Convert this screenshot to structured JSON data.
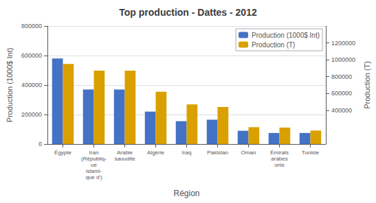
{
  "chart_data": {
    "type": "bar",
    "title": "Top production - Dattes - 2012",
    "xlabel": "Région",
    "ylabel": "Production (1000$ Int)",
    "y2label": "Production (T)",
    "categories": [
      "Égypte",
      "Iran\n(Républiq-\nue\nislami-\nque d')",
      "Arabie\nsaoudite",
      "Algérie",
      "Iraq",
      "Pakistan",
      "Oman",
      "Émirats\narabes\nunis",
      "Tunisie"
    ],
    "series": [
      {
        "name": "Production (1000$ Int)",
        "color": "#4472c4",
        "values": [
          580000,
          370000,
          370000,
          220000,
          155000,
          165000,
          90000,
          75000,
          75000
        ]
      },
      {
        "name": "Production (T)",
        "color": "#DAA000",
        "axis": "y2",
        "values": [
          950000,
          870000,
          870000,
          620000,
          470000,
          440000,
          200000,
          195000,
          160000
        ]
      }
    ],
    "ylim": [
      0,
      800000
    ],
    "yticks": [
      0,
      200000,
      400000,
      600000,
      800000
    ],
    "y2lim": [
      0,
      1400000
    ],
    "y2ticks": [
      400000,
      600000,
      800000,
      1000000,
      1200000
    ],
    "grid": true,
    "legend": "upper right"
  }
}
